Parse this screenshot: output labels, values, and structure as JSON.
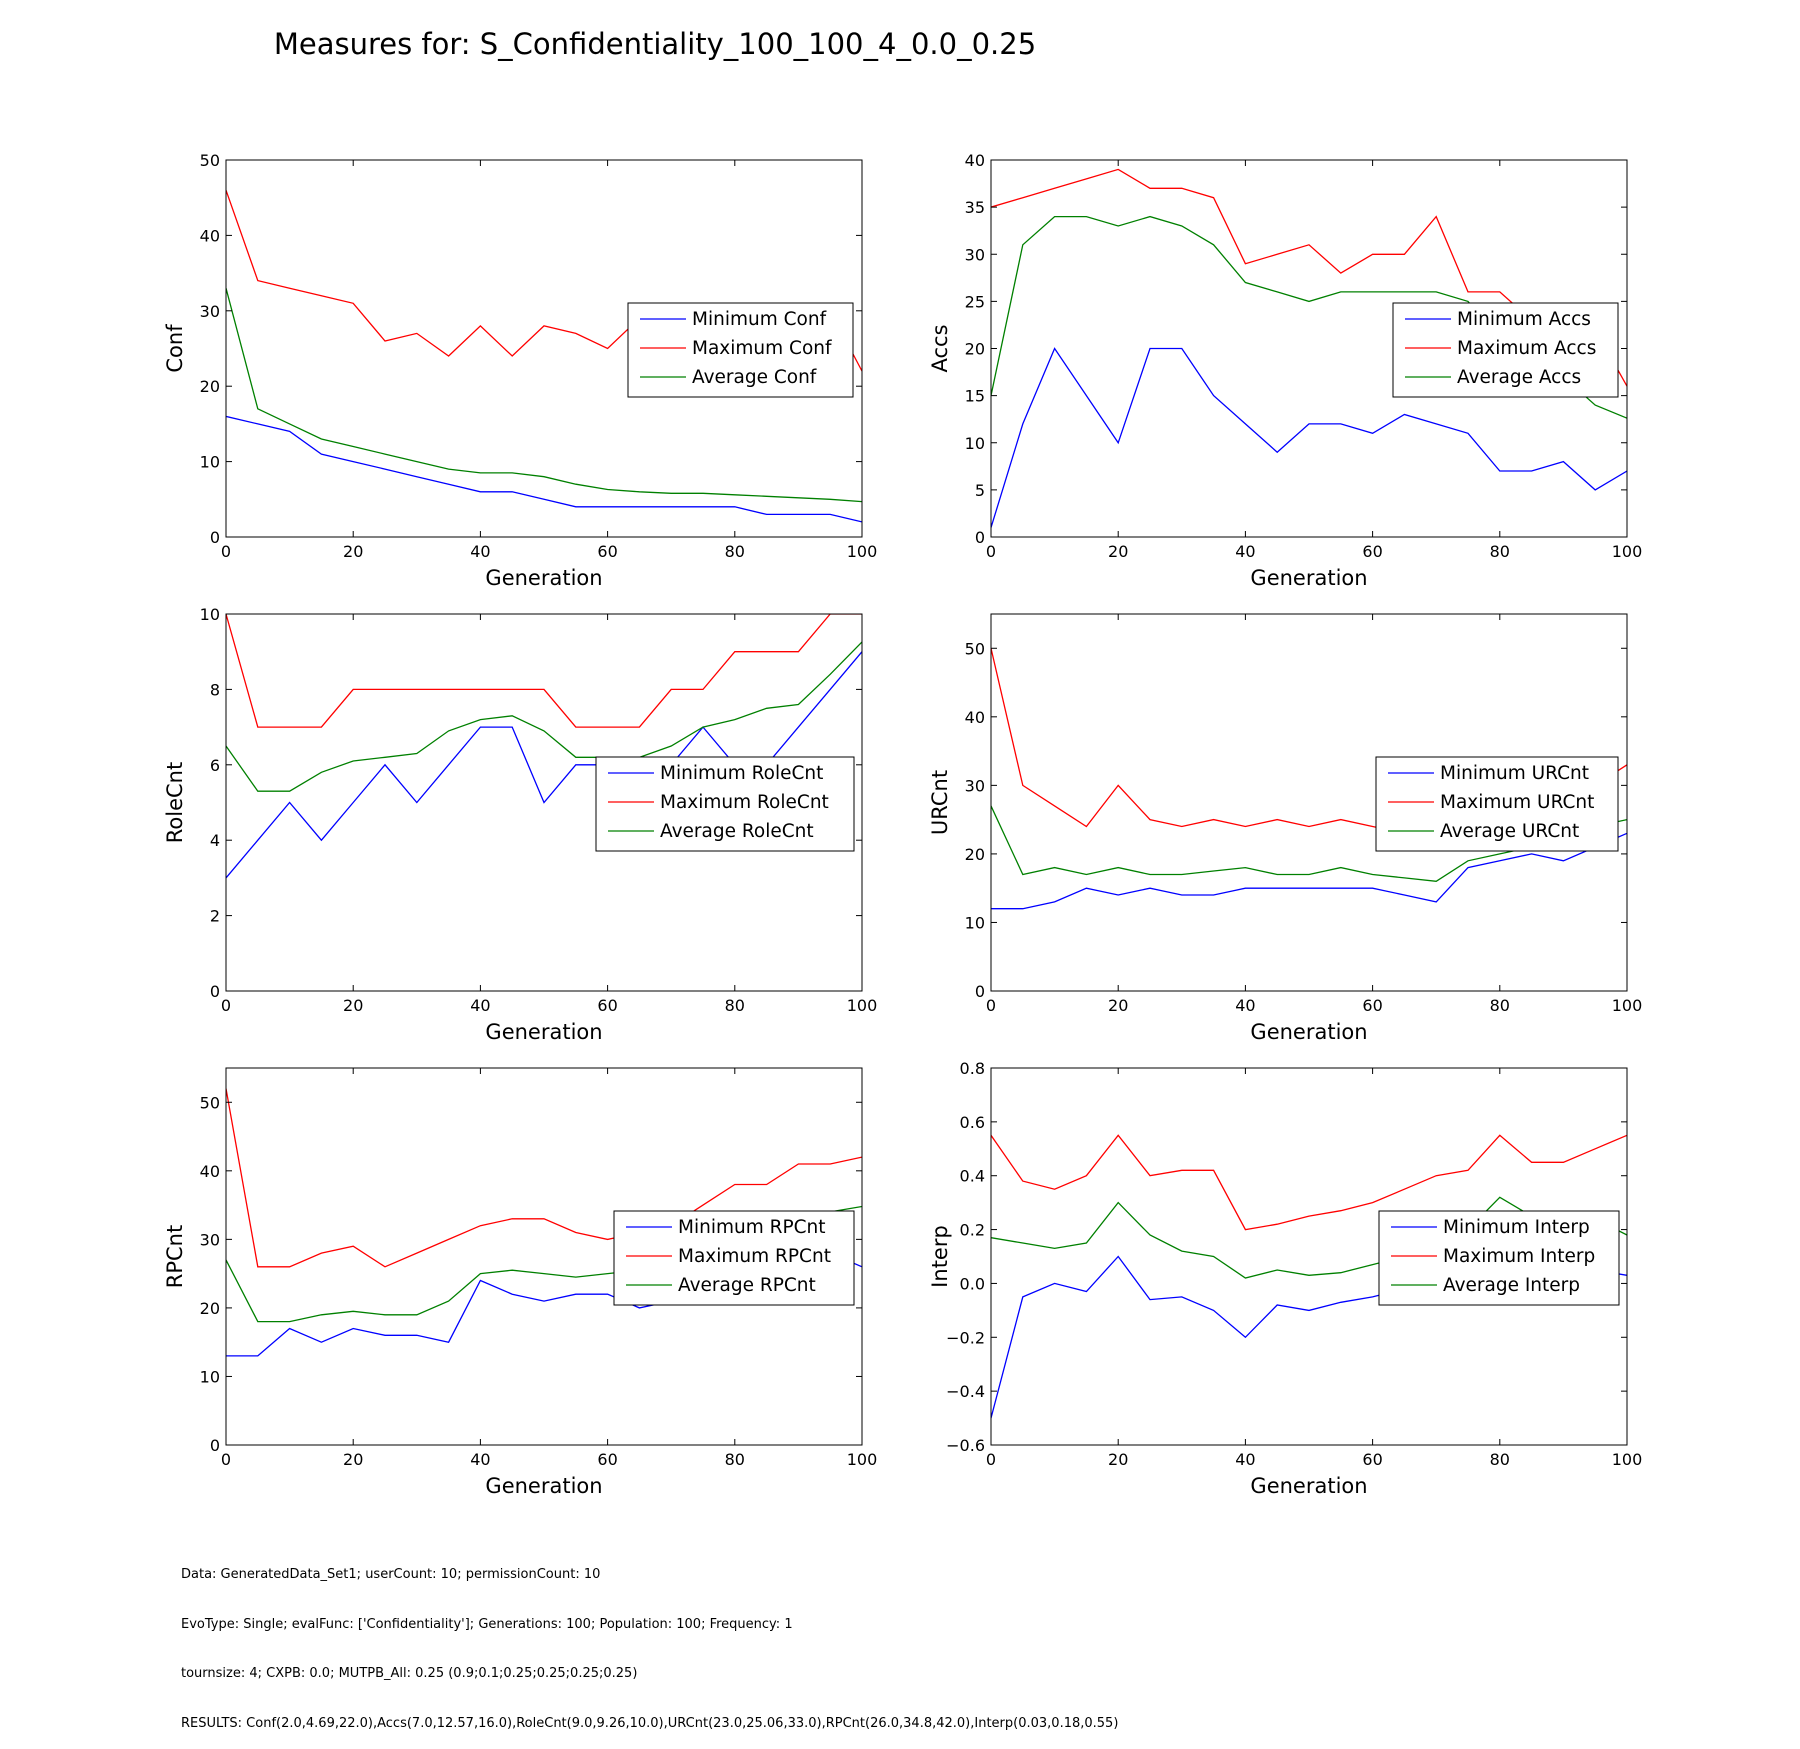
{
  "figure_title": "Measures for: S_Confidentiality_100_100_4_0.0_0.25",
  "footer": [
    "Data: GeneratedData_Set1; userCount: 10; permissionCount: 10",
    "EvoType: Single; evalFunc: ['Confidentiality']; Generations: 100; Population: 100; Frequency: 1",
    "tournsize: 4; CXPB: 0.0; MUTPB_All: 0.25 (0.9;0.1;0.25;0.25;0.25;0.25)",
    "RESULTS: Conf(2.0,4.69,22.0),Accs(7.0,12.57,16.0),RoleCnt(9.0,9.26,10.0),URCnt(23.0,25.06,33.0),RPCnt(26.0,34.8,42.0),Interp(0.03,0.18,0.55)"
  ],
  "colors": {
    "minimum": "#0000ff",
    "maximum": "#ff0000",
    "average": "#008000"
  },
  "chart_data": [
    {
      "type": "line",
      "xlabel": "Generation",
      "ylabel": "Conf",
      "xlim": [
        0,
        100
      ],
      "ylim": [
        0,
        50
      ],
      "xticks": [
        0,
        20,
        40,
        60,
        80,
        100
      ],
      "yticks": [
        0,
        10,
        20,
        30,
        40,
        50
      ],
      "legend": "right",
      "x": [
        0,
        5,
        10,
        15,
        20,
        25,
        30,
        35,
        40,
        45,
        50,
        55,
        60,
        65,
        70,
        75,
        80,
        85,
        90,
        95,
        100
      ],
      "series": [
        {
          "name": "Minimum Conf",
          "color": "#0000ff",
          "values": [
            16,
            15,
            14,
            11,
            10,
            9,
            8,
            7,
            6,
            6,
            5,
            4,
            4,
            4,
            4,
            4,
            4,
            3,
            3,
            3,
            2
          ]
        },
        {
          "name": "Maximum Conf",
          "color": "#ff0000",
          "values": [
            46,
            34,
            33,
            32,
            31,
            26,
            27,
            24,
            28,
            24,
            28,
            27,
            25,
            29,
            27,
            27,
            26,
            26,
            26,
            30,
            22
          ]
        },
        {
          "name": "Average Conf",
          "color": "#008000",
          "values": [
            33,
            17,
            15,
            13,
            12,
            11,
            10,
            9,
            8.5,
            8.5,
            8,
            7,
            6.3,
            6,
            5.8,
            5.8,
            5.6,
            5.4,
            5.2,
            5,
            4.7
          ]
        }
      ]
    },
    {
      "type": "line",
      "xlabel": "Generation",
      "ylabel": "Accs",
      "xlim": [
        0,
        100
      ],
      "ylim": [
        0,
        40
      ],
      "xticks": [
        0,
        20,
        40,
        60,
        80,
        100
      ],
      "yticks": [
        0,
        5,
        10,
        15,
        20,
        25,
        30,
        35,
        40
      ],
      "legend": "right",
      "x": [
        0,
        5,
        10,
        15,
        20,
        25,
        30,
        35,
        40,
        45,
        50,
        55,
        60,
        65,
        70,
        75,
        80,
        85,
        90,
        95,
        100
      ],
      "series": [
        {
          "name": "Minimum Accs",
          "color": "#0000ff",
          "values": [
            1,
            12,
            20,
            15,
            10,
            20,
            20,
            15,
            12,
            9,
            12,
            12,
            11,
            13,
            12,
            11,
            7,
            7,
            8,
            5,
            7
          ]
        },
        {
          "name": "Maximum Accs",
          "color": "#ff0000",
          "values": [
            35,
            36,
            37,
            38,
            39,
            37,
            37,
            36,
            29,
            30,
            31,
            28,
            30,
            30,
            34,
            26,
            26,
            23,
            24,
            22,
            16
          ]
        },
        {
          "name": "Average Accs",
          "color": "#008000",
          "values": [
            15,
            31,
            34,
            34,
            33,
            34,
            33,
            31,
            27,
            26,
            25,
            26,
            26,
            26,
            26,
            25,
            21,
            19,
            17,
            14,
            12.6
          ]
        }
      ]
    },
    {
      "type": "line",
      "xlabel": "Generation",
      "ylabel": "RoleCnt",
      "xlim": [
        0,
        100
      ],
      "ylim": [
        0,
        10
      ],
      "xticks": [
        0,
        20,
        40,
        60,
        80,
        100
      ],
      "yticks": [
        0,
        2,
        4,
        6,
        8,
        10
      ],
      "legend": "right",
      "x": [
        0,
        5,
        10,
        15,
        20,
        25,
        30,
        35,
        40,
        45,
        50,
        55,
        60,
        65,
        70,
        75,
        80,
        85,
        90,
        95,
        100
      ],
      "series": [
        {
          "name": "Minimum RoleCnt",
          "color": "#0000ff",
          "values": [
            3,
            4,
            5,
            4,
            5,
            6,
            5,
            6,
            7,
            7,
            5,
            6,
            6,
            6,
            6,
            7,
            6,
            6,
            7,
            8,
            9
          ]
        },
        {
          "name": "Maximum RoleCnt",
          "color": "#ff0000",
          "values": [
            10,
            7,
            7,
            7,
            8,
            8,
            8,
            8,
            8,
            8,
            8,
            7,
            7,
            7,
            8,
            8,
            9,
            9,
            9,
            10,
            10
          ]
        },
        {
          "name": "Average RoleCnt",
          "color": "#008000",
          "values": [
            6.5,
            5.3,
            5.3,
            5.8,
            6.1,
            6.2,
            6.3,
            6.9,
            7.2,
            7.3,
            6.9,
            6.2,
            6.2,
            6.2,
            6.5,
            7,
            7.2,
            7.5,
            7.6,
            8.4,
            9.26
          ]
        }
      ]
    },
    {
      "type": "line",
      "xlabel": "Generation",
      "ylabel": "URCnt",
      "xlim": [
        0,
        100
      ],
      "ylim": [
        0,
        55
      ],
      "xticks": [
        0,
        20,
        40,
        60,
        80,
        100
      ],
      "yticks": [
        0,
        10,
        20,
        30,
        40,
        50
      ],
      "legend": "right",
      "x": [
        0,
        5,
        10,
        15,
        20,
        25,
        30,
        35,
        40,
        45,
        50,
        55,
        60,
        65,
        70,
        75,
        80,
        85,
        90,
        95,
        100
      ],
      "series": [
        {
          "name": "Minimum URCnt",
          "color": "#0000ff",
          "values": [
            12,
            12,
            13,
            15,
            14,
            15,
            14,
            14,
            15,
            15,
            15,
            15,
            15,
            14,
            13,
            18,
            19,
            20,
            19,
            21,
            23
          ]
        },
        {
          "name": "Maximum URCnt",
          "color": "#ff0000",
          "values": [
            50,
            30,
            27,
            24,
            30,
            25,
            24,
            25,
            24,
            25,
            24,
            25,
            24,
            23,
            23,
            27,
            28,
            28,
            29,
            30,
            33
          ]
        },
        {
          "name": "Average URCnt",
          "color": "#008000",
          "values": [
            27,
            17,
            18,
            17,
            18,
            17,
            17,
            17.5,
            18,
            17,
            17,
            18,
            17,
            16.5,
            16,
            19,
            20,
            21,
            22,
            24,
            25
          ]
        }
      ]
    },
    {
      "type": "line",
      "xlabel": "Generation",
      "ylabel": "RPCnt",
      "xlim": [
        0,
        100
      ],
      "ylim": [
        0,
        55
      ],
      "xticks": [
        0,
        20,
        40,
        60,
        80,
        100
      ],
      "yticks": [
        0,
        10,
        20,
        30,
        40,
        50
      ],
      "legend": "right",
      "x": [
        0,
        5,
        10,
        15,
        20,
        25,
        30,
        35,
        40,
        45,
        50,
        55,
        60,
        65,
        70,
        75,
        80,
        85,
        90,
        95,
        100
      ],
      "series": [
        {
          "name": "Minimum RPCnt",
          "color": "#0000ff",
          "values": [
            13,
            13,
            17,
            15,
            17,
            16,
            16,
            15,
            24,
            22,
            21,
            22,
            22,
            20,
            21,
            24,
            25,
            26,
            27,
            28,
            26
          ]
        },
        {
          "name": "Maximum RPCnt",
          "color": "#ff0000",
          "values": [
            52,
            26,
            26,
            28,
            29,
            26,
            28,
            30,
            32,
            33,
            33,
            31,
            30,
            31,
            32,
            35,
            38,
            38,
            41,
            41,
            42
          ]
        },
        {
          "name": "Average RPCnt",
          "color": "#008000",
          "values": [
            27,
            18,
            18,
            19,
            19.5,
            19,
            19,
            21,
            25,
            25.5,
            25,
            24.5,
            25,
            25.5,
            26,
            28,
            31,
            32,
            33,
            34,
            34.8
          ]
        }
      ]
    },
    {
      "type": "line",
      "xlabel": "Generation",
      "ylabel": "Interp",
      "xlim": [
        0,
        100
      ],
      "ylim": [
        -0.6,
        0.8
      ],
      "xticks": [
        0,
        20,
        40,
        60,
        80,
        100
      ],
      "yticks": [
        -0.6,
        -0.4,
        -0.2,
        0.0,
        0.2,
        0.4,
        0.6,
        0.8
      ],
      "legend": "right",
      "x": [
        0,
        5,
        10,
        15,
        20,
        25,
        30,
        35,
        40,
        45,
        50,
        55,
        60,
        65,
        70,
        75,
        80,
        85,
        90,
        95,
        100
      ],
      "series": [
        {
          "name": "Minimum Interp",
          "color": "#0000ff",
          "values": [
            -0.5,
            -0.05,
            0.0,
            -0.03,
            0.1,
            -0.06,
            -0.05,
            -0.1,
            -0.2,
            -0.08,
            -0.1,
            -0.07,
            -0.05,
            -0.02,
            0.02,
            0.0,
            0.03,
            0.06,
            0.06,
            0.05,
            0.03
          ]
        },
        {
          "name": "Maximum Interp",
          "color": "#ff0000",
          "values": [
            0.55,
            0.38,
            0.35,
            0.4,
            0.55,
            0.4,
            0.42,
            0.42,
            0.2,
            0.22,
            0.25,
            0.27,
            0.3,
            0.35,
            0.4,
            0.42,
            0.55,
            0.45,
            0.45,
            0.5,
            0.55
          ]
        },
        {
          "name": "Average Interp",
          "color": "#008000",
          "values": [
            0.17,
            0.15,
            0.13,
            0.15,
            0.3,
            0.18,
            0.12,
            0.1,
            0.02,
            0.05,
            0.03,
            0.04,
            0.07,
            0.1,
            0.15,
            0.2,
            0.32,
            0.25,
            0.22,
            0.24,
            0.18
          ]
        }
      ]
    }
  ]
}
